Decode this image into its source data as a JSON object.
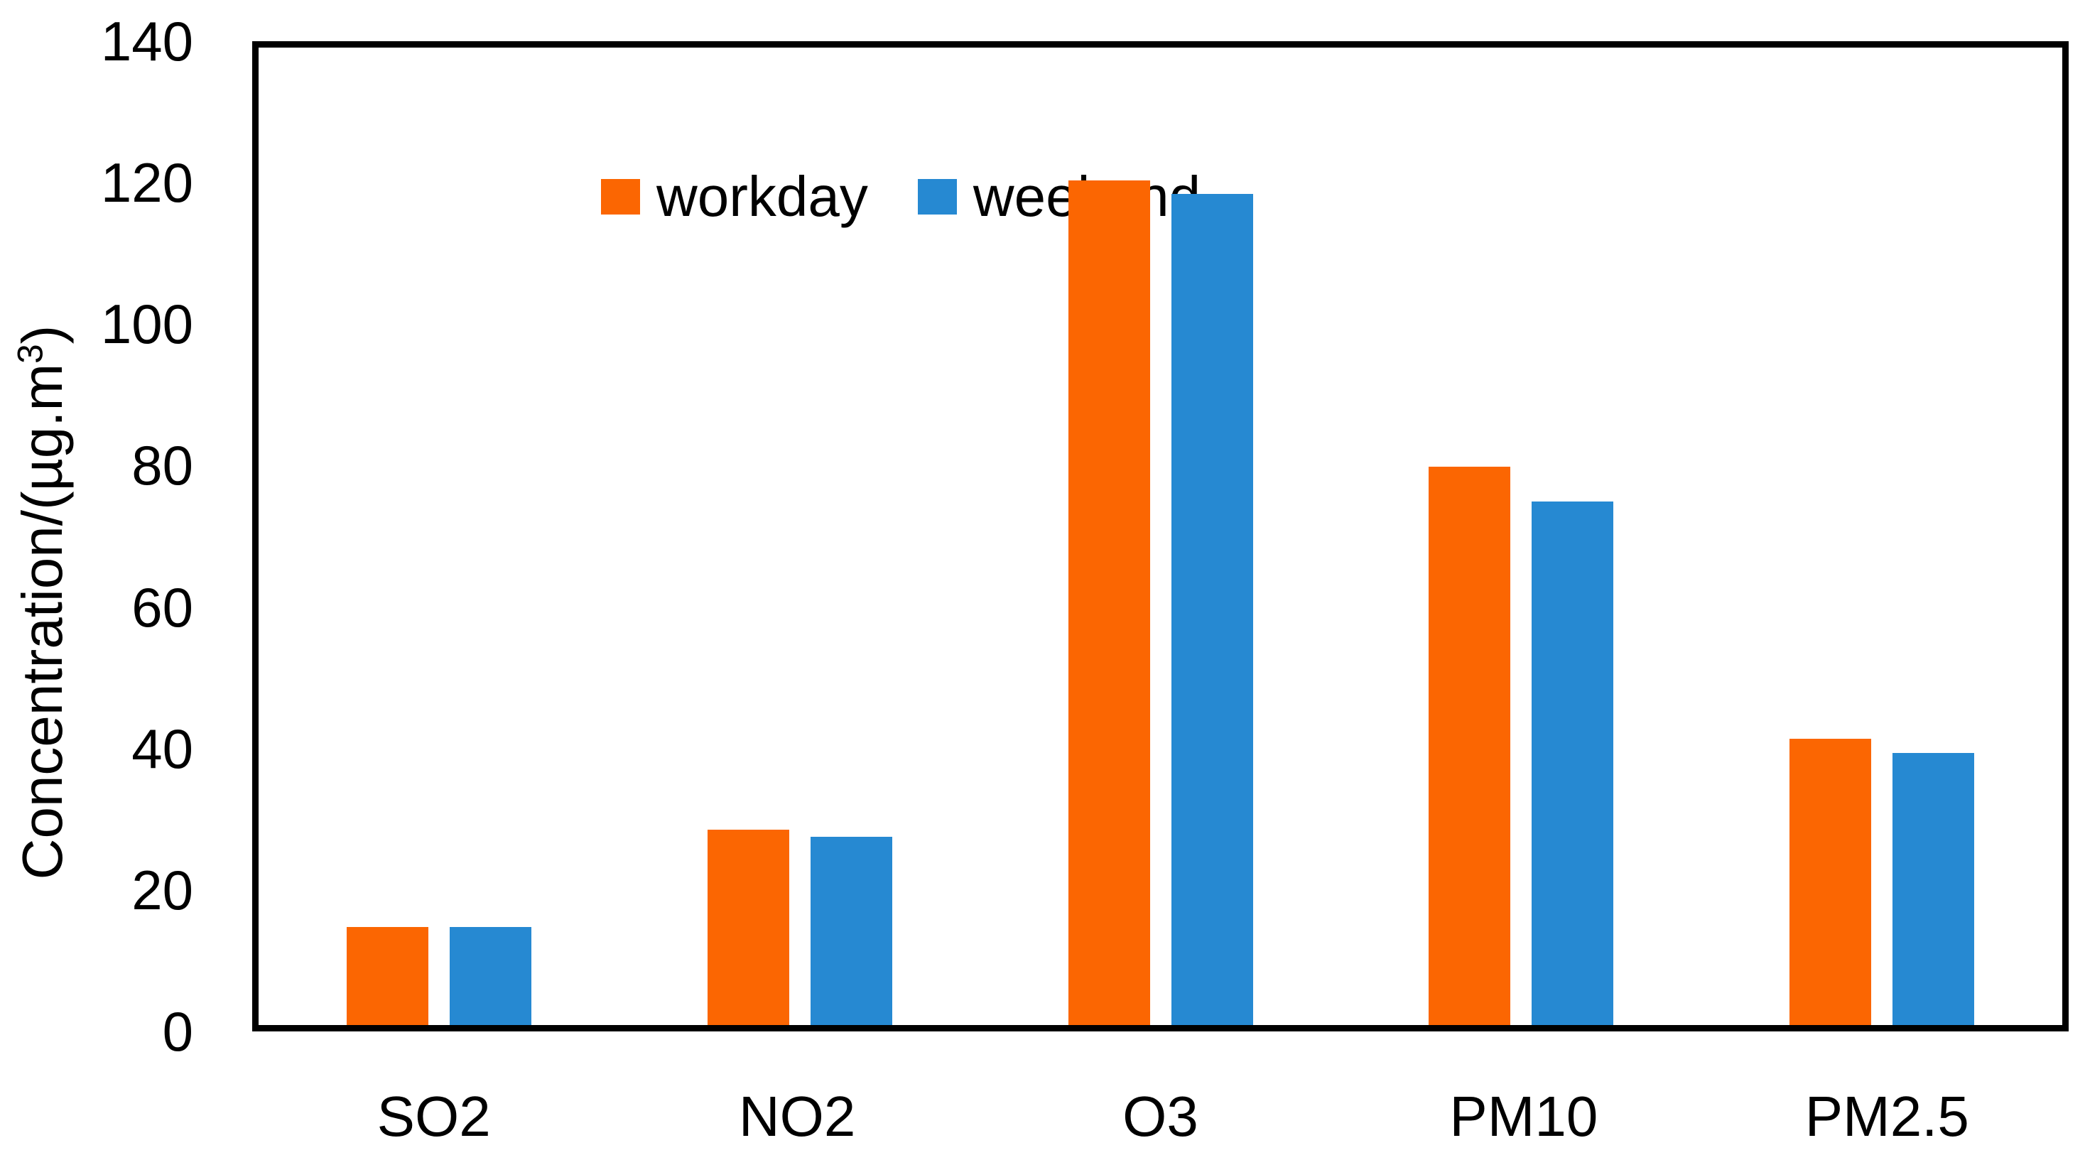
{
  "figure": {
    "background": "#ffffff",
    "text_color": "#000000",
    "axis_color": "#000000"
  },
  "chart_data": {
    "type": "bar",
    "title": "",
    "categories": [
      "SO2",
      "NO2",
      "O3",
      "PM10",
      "PM2.5"
    ],
    "series": [
      {
        "name": "workday",
        "color": "#FB6602",
        "values": [
          14,
          28,
          121,
          80,
          41
        ]
      },
      {
        "name": "weekend",
        "color": "#2689D2",
        "values": [
          14,
          27,
          119,
          75,
          39
        ]
      }
    ],
    "xlabel": "",
    "ylabel": "Concentration/(µg.m³)",
    "ylabel_parts": {
      "main": "Concentration/(µg.m",
      "sup": "3",
      "close": ")"
    },
    "ylim": [
      0,
      140
    ],
    "yticks": [
      0,
      20,
      40,
      60,
      80,
      100,
      120,
      140
    ],
    "grid": false,
    "legend_position": "top-left-inside",
    "plot_frame": true
  }
}
